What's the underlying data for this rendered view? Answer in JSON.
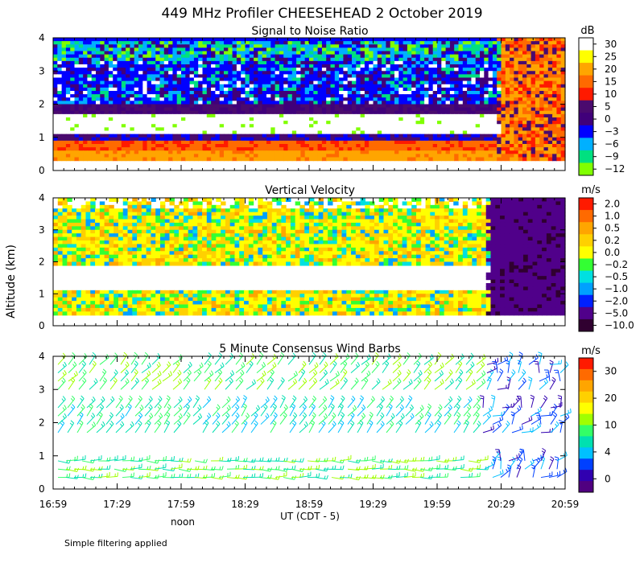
{
  "title": "449 MHz Profiler CHEESEHEAD  2 October 2019",
  "ylabel": "Altitude (km)",
  "xlabel": "UT  (CDT - 5)",
  "time_ticks": [
    "16:59",
    "17:29",
    "17:59",
    "18:29",
    "18:59",
    "19:29",
    "19:59",
    "20:29",
    "20:59"
  ],
  "noon_label": "noon",
  "footnote": "Simple filtering applied",
  "chart_data": [
    {
      "type": "heatmap",
      "title": "Signal to Noise Ratio",
      "unit": "dB",
      "ylim": [
        0,
        4
      ],
      "yticks": [
        "0",
        "1",
        "2",
        "3",
        "4"
      ],
      "xlim": [
        "16:59",
        "20:59"
      ],
      "colorbar": {
        "labels": [
          "30",
          "25",
          "20",
          "15",
          "10",
          "5",
          "0",
          "−3",
          "−6",
          "−9",
          "−12"
        ],
        "colors": [
          "#ffffff",
          "#ffff00",
          "#ffa500",
          "#ff6a00",
          "#ff1a00",
          "#4a0a6e",
          "#40007a",
          "#0000ff",
          "#00b0ff",
          "#00e080",
          "#80ff00"
        ]
      },
      "layers": [
        {
          "alt": [
            0.3,
            0.9
          ],
          "value_db": 15,
          "until": "20:29"
        },
        {
          "alt": [
            1.1,
            1.7
          ],
          "value_db": 30,
          "until": "20:27"
        },
        {
          "alt": [
            1.8,
            3.3
          ],
          "value_db": 0,
          "until": "20:27"
        },
        {
          "alt": [
            3.3,
            3.9
          ],
          "value_db": -6,
          "until": "20:27"
        },
        {
          "alt": [
            0.3,
            4.0
          ],
          "value_db": 15,
          "from": "20:27"
        }
      ]
    },
    {
      "type": "heatmap",
      "title": "Vertical Velocity",
      "unit": "m/s",
      "ylim": [
        0,
        4
      ],
      "yticks": [
        "0",
        "1",
        "2",
        "3",
        "4"
      ],
      "xlim": [
        "16:59",
        "20:59"
      ],
      "colorbar": {
        "labels": [
          "2.0",
          "1.0",
          "0.5",
          "0.2",
          "0.0",
          "−0.2",
          "−0.5",
          "−1.0",
          "−2.0",
          "−5.0",
          "−10.0"
        ],
        "colors": [
          "#ff1a00",
          "#ff6a00",
          "#ffa500",
          "#ffd000",
          "#ffff00",
          "#33ff33",
          "#00e0e0",
          "#00a0ff",
          "#0020ff",
          "#50008a",
          "#300030"
        ]
      },
      "layers": [
        {
          "alt": [
            0.3,
            1.1
          ],
          "value_ms": 0.0,
          "until": "20:22"
        },
        {
          "alt": [
            1.1,
            1.9
          ],
          "value_ms": null,
          "until": "20:22"
        },
        {
          "alt": [
            1.9,
            4.0
          ],
          "value_ms": 0.2,
          "until": "20:22"
        },
        {
          "alt": [
            0.3,
            4.0
          ],
          "value_ms": -5.0,
          "from": "20:22"
        }
      ]
    },
    {
      "type": "wind_barbs",
      "title": "5 Minute Consensus Wind Barbs",
      "unit": "m/s",
      "ylim": [
        0,
        4
      ],
      "yticks": [
        "0",
        "1",
        "2",
        "3",
        "4"
      ],
      "xlim": [
        "16:59",
        "20:59"
      ],
      "colorbar": {
        "labels": [
          "30",
          "20",
          "10",
          "4",
          "0"
        ],
        "colors": [
          "#ff1a00",
          "#ff6a00",
          "#ffa500",
          "#ffd000",
          "#ffff00",
          "#a0ff00",
          "#33ff66",
          "#00e0b0",
          "#00c0ff",
          "#0040ff",
          "#3000b0",
          "#500080"
        ]
      },
      "bands": [
        {
          "alt": [
            0.3,
            1.1
          ],
          "speed_ms": 10
        },
        {
          "alt": [
            1.6,
            2.6
          ],
          "speed_ms": 10
        },
        {
          "alt": [
            2.9,
            4.0
          ],
          "speed_ms": 10
        },
        {
          "alt": [
            0.3,
            3.0
          ],
          "speed_ms": 4,
          "from": "20:19"
        }
      ]
    }
  ]
}
